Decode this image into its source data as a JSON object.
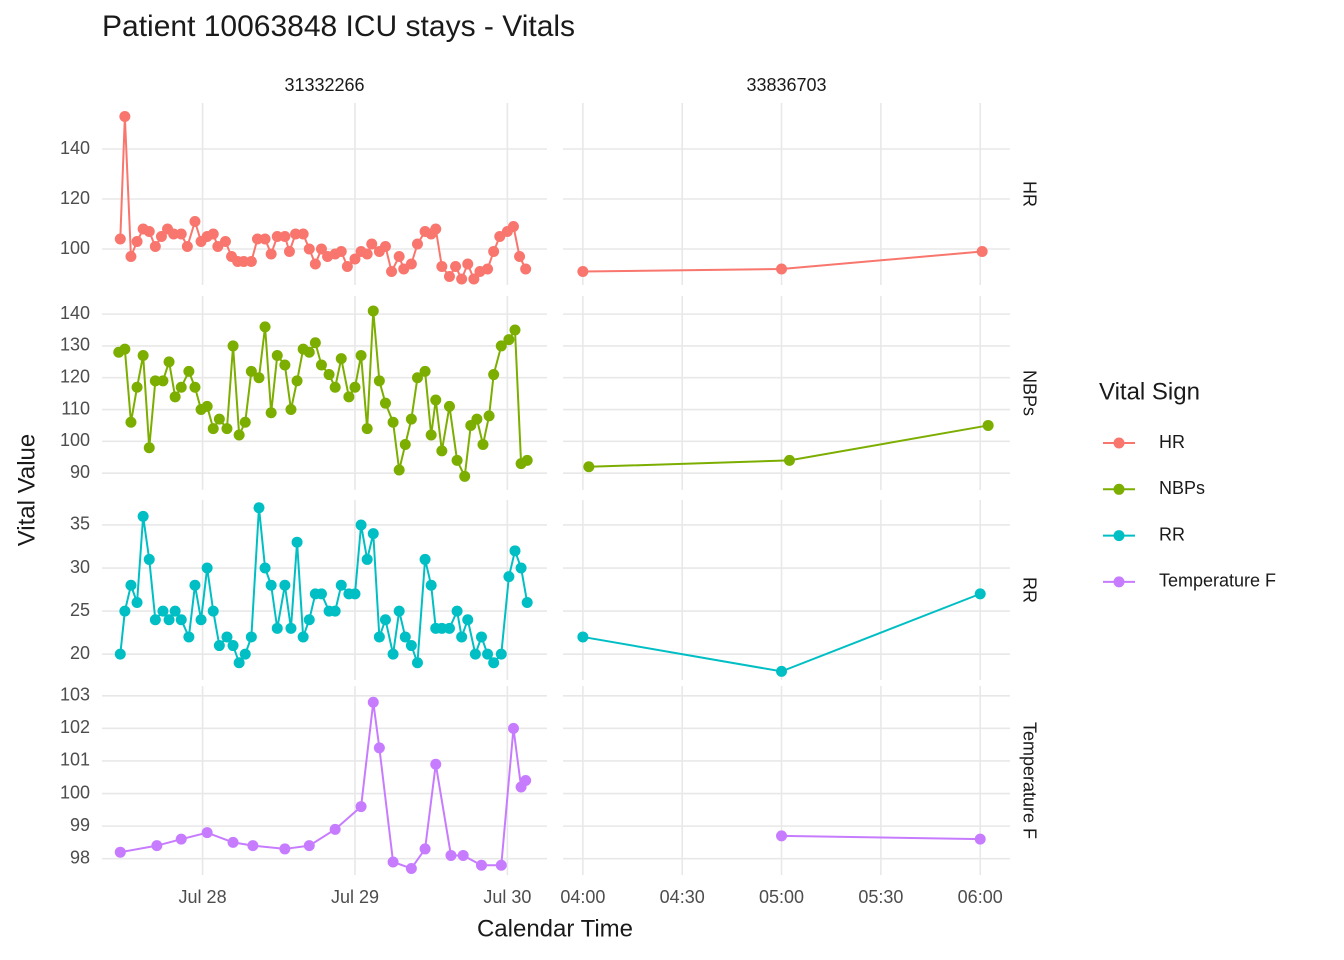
{
  "chart_data": {
    "type": "line",
    "title": "Patient 10063848 ICU stays - Vitals",
    "x_label": "Calendar Time",
    "y_label": "Vital Value",
    "legend_title": "Vital Sign",
    "stays": [
      {
        "label": "31332266",
        "xlim": [
          27.34,
          30.26
        ],
        "xticks": [
          {
            "value": 28,
            "label": "Jul 28"
          },
          {
            "value": 29,
            "label": "Jul 29"
          },
          {
            "value": 30,
            "label": "Jul 30"
          }
        ]
      },
      {
        "label": "33836703",
        "xlim": [
          3.9,
          6.15
        ],
        "xticks": [
          {
            "value": 4,
            "label": "04:00"
          },
          {
            "value": 4.5,
            "label": "04:30"
          },
          {
            "value": 5,
            "label": "05:00"
          },
          {
            "value": 5.5,
            "label": "05:30"
          },
          {
            "value": 6,
            "label": "06:00"
          }
        ]
      }
    ],
    "grid": true,
    "series": [
      {
        "name": "HR",
        "color": "#F8766D",
        "ylim": [
          85.6,
          158.4
        ],
        "yticks": [
          100,
          120,
          140
        ],
        "stays": [
          {
            "x": [
              27.46,
              27.49,
              27.53,
              27.57,
              27.61,
              27.65,
              27.69,
              27.73,
              27.77,
              27.81,
              27.86,
              27.9,
              27.95,
              27.99,
              28.03,
              28.07,
              28.1,
              28.15,
              28.19,
              28.23,
              28.27,
              28.32,
              28.36,
              28.41,
              28.45,
              28.49,
              28.54,
              28.57,
              28.61,
              28.66,
              28.7,
              28.74,
              28.78,
              28.82,
              28.87,
              28.91,
              28.95,
              29.0,
              29.04,
              29.08,
              29.11,
              29.16,
              29.2,
              29.24,
              29.29,
              29.32,
              29.37,
              29.41,
              29.46,
              29.5,
              29.53,
              29.57,
              29.62,
              29.66,
              29.7,
              29.74,
              29.78,
              29.82,
              29.87,
              29.91,
              29.95,
              30.0,
              30.04,
              30.08,
              30.12
            ],
            "values": [
              104,
              153,
              97,
              103,
              108,
              107,
              101,
              105,
              108,
              106,
              106,
              101,
              111,
              103,
              105,
              106,
              101,
              103,
              97,
              95,
              95,
              95,
              104,
              104,
              98,
              105,
              105,
              99,
              106,
              106,
              100,
              94,
              100,
              97,
              98,
              99,
              93,
              96,
              99,
              98,
              102,
              99,
              101,
              91,
              97,
              92,
              94,
              102,
              107,
              106,
              108,
              93,
              89,
              93,
              88,
              94,
              88,
              91,
              92,
              99,
              105,
              107,
              109,
              97,
              92
            ]
          },
          {
            "x": [
              4.0,
              5.0,
              6.01
            ],
            "values": [
              91,
              92,
              99
            ]
          }
        ]
      },
      {
        "name": "NBPs",
        "color": "#7CAE00",
        "ylim": [
          84.7,
          145.7
        ],
        "yticks": [
          90,
          100,
          110,
          120,
          130,
          140
        ],
        "stays": [
          {
            "x": [
              27.45,
              27.49,
              27.53,
              27.57,
              27.61,
              27.65,
              27.69,
              27.74,
              27.78,
              27.82,
              27.86,
              27.91,
              27.95,
              27.99,
              28.03,
              28.07,
              28.11,
              28.16,
              28.2,
              28.24,
              28.28,
              28.32,
              28.37,
              28.41,
              28.45,
              28.49,
              28.54,
              28.58,
              28.62,
              28.66,
              28.7,
              28.74,
              28.78,
              28.83,
              28.87,
              28.91,
              28.96,
              29.0,
              29.04,
              29.08,
              29.12,
              29.16,
              29.2,
              29.25,
              29.29,
              29.33,
              29.37,
              29.41,
              29.46,
              29.5,
              29.53,
              29.57,
              29.62,
              29.67,
              29.72,
              29.76,
              29.8,
              29.84,
              29.88,
              29.91,
              29.96,
              30.01,
              30.05,
              30.09,
              30.13
            ],
            "values": [
              128,
              129,
              106,
              117,
              127,
              98,
              119,
              119,
              125,
              114,
              117,
              122,
              117,
              110,
              111,
              104,
              107,
              104,
              130,
              102,
              106,
              122,
              120,
              136,
              109,
              127,
              124,
              110,
              119,
              129,
              128,
              131,
              124,
              121,
              117,
              126,
              114,
              117,
              127,
              104,
              141,
              119,
              112,
              106,
              91,
              99,
              107,
              120,
              122,
              102,
              113,
              97,
              111,
              94,
              89,
              105,
              107,
              99,
              108,
              121,
              130,
              132,
              135,
              93,
              94
            ]
          },
          {
            "x": [
              4.03,
              5.04,
              6.04
            ],
            "values": [
              92,
              94,
              105
            ]
          }
        ]
      },
      {
        "name": "RR",
        "color": "#00BFC4",
        "ylim": [
          17.0,
          37.9
        ],
        "yticks": [
          20,
          25,
          30,
          35
        ],
        "stays": [
          {
            "x": [
              27.46,
              27.49,
              27.53,
              27.57,
              27.61,
              27.65,
              27.69,
              27.74,
              27.78,
              27.82,
              27.86,
              27.91,
              27.95,
              27.99,
              28.03,
              28.07,
              28.11,
              28.16,
              28.2,
              28.24,
              28.28,
              28.32,
              28.37,
              28.41,
              28.45,
              28.49,
              28.54,
              28.58,
              28.62,
              28.66,
              28.7,
              28.74,
              28.78,
              28.83,
              28.87,
              28.91,
              28.96,
              29.0,
              29.04,
              29.08,
              29.12,
              29.16,
              29.2,
              29.25,
              29.29,
              29.33,
              29.37,
              29.41,
              29.46,
              29.5,
              29.53,
              29.57,
              29.62,
              29.67,
              29.7,
              29.74,
              29.79,
              29.83,
              29.87,
              29.91,
              29.96,
              30.01,
              30.05,
              30.09,
              30.13
            ],
            "values": [
              20,
              25,
              28,
              26,
              36,
              31,
              24,
              25,
              24,
              25,
              24,
              22,
              28,
              24,
              30,
              25,
              21,
              22,
              21,
              19,
              20,
              22,
              37,
              30,
              28,
              23,
              28,
              23,
              33,
              22,
              24,
              27,
              27,
              25,
              25,
              28,
              27,
              27,
              35,
              31,
              34,
              22,
              24,
              20,
              25,
              22,
              21,
              19,
              31,
              28,
              23,
              23,
              23,
              25,
              22,
              24,
              20,
              22,
              20,
              19,
              20,
              29,
              32,
              30,
              26
            ]
          },
          {
            "x": [
              4.0,
              5.0,
              6.0
            ],
            "values": [
              22,
              18,
              27
            ]
          }
        ]
      },
      {
        "name": "Temperature F",
        "color": "#C77CFF",
        "ylim": [
          97.5,
          103.3
        ],
        "yticks": [
          98,
          99,
          100,
          101,
          102,
          103
        ],
        "stays": [
          {
            "x": [
              27.46,
              27.7,
              27.86,
              28.03,
              28.2,
              28.33,
              28.54,
              28.7,
              28.87,
              29.04,
              29.12,
              29.16,
              29.25,
              29.37,
              29.46,
              29.53,
              29.63,
              29.71,
              29.83,
              29.96,
              30.04,
              30.09,
              30.12
            ],
            "values": [
              98.2,
              98.4,
              98.6,
              98.8,
              98.5,
              98.4,
              98.3,
              98.4,
              98.9,
              99.6,
              102.8,
              101.4,
              97.9,
              97.7,
              98.3,
              100.9,
              98.1,
              98.1,
              97.8,
              97.8,
              102.0,
              100.2,
              100.4
            ]
          },
          {
            "x": [
              5.0,
              6.0
            ],
            "values": [
              98.7,
              98.6
            ]
          }
        ]
      }
    ]
  }
}
